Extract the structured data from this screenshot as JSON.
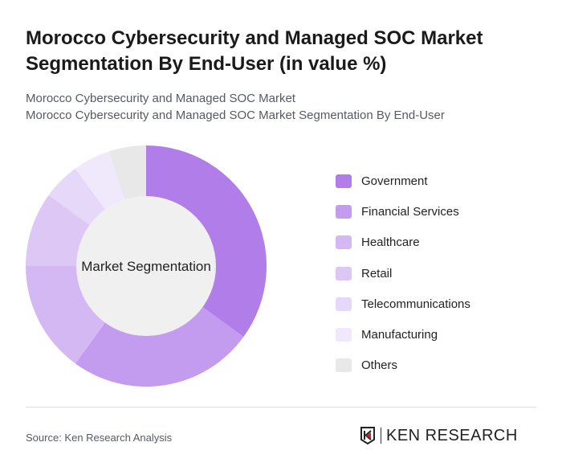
{
  "title": "Morocco Cybersecurity and Managed SOC Market Segmentation By End-User (in value %)",
  "subtitle1": "Morocco Cybersecurity and Managed SOC Market",
  "subtitle2": "Morocco Cybersecurity and Managed SOC Market Segmentation By End-User",
  "source": "Source: Ken Research Analysis",
  "logo_text": "KEN RESEARCH",
  "chart_data": {
    "type": "pie",
    "variant": "donut",
    "center_label": "Market Segmentation",
    "legend_position": "right",
    "categories": [
      "Government",
      "Financial Services",
      "Healthcare",
      "Retail",
      "Telecommunications",
      "Manufacturing",
      "Others"
    ],
    "values": [
      35,
      25,
      15,
      10,
      5,
      5,
      5
    ],
    "colors": [
      "#b07de9",
      "#c39bef",
      "#d4b8f3",
      "#ddc8f5",
      "#e6d8f8",
      "#f0e9fb",
      "#e8e8e8"
    ]
  }
}
